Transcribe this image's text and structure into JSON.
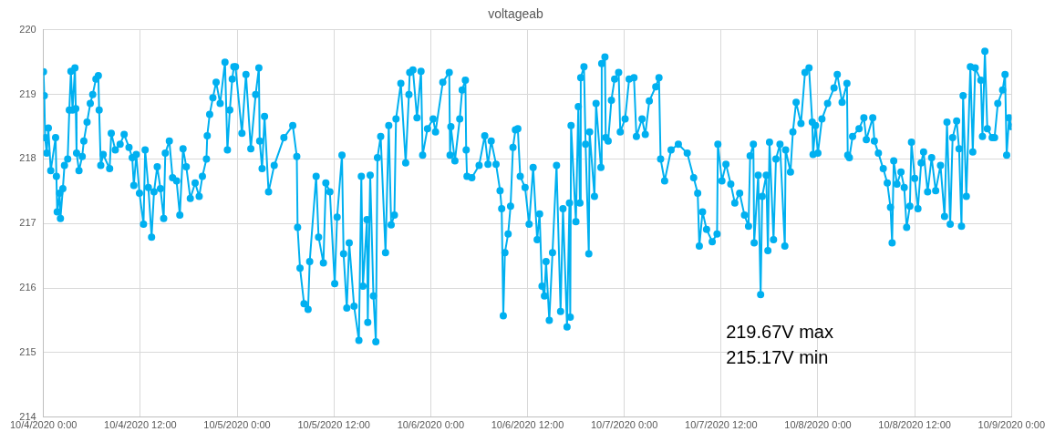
{
  "chart_data": {
    "type": "line",
    "title": "voltageab",
    "annotations": [
      "219.67V max",
      "215.17V min"
    ],
    "xlim": [
      "2020-10-04T00:00",
      "2020-10-09T00:00"
    ],
    "xticks": [
      {
        "value": "2020-10-04T00:00",
        "label": "10/4/2020 0:00"
      },
      {
        "value": "2020-10-04T12:00",
        "label": "10/4/2020 12:00"
      },
      {
        "value": "2020-10-05T00:00",
        "label": "10/5/2020 0:00"
      },
      {
        "value": "2020-10-05T12:00",
        "label": "10/5/2020 12:00"
      },
      {
        "value": "2020-10-06T00:00",
        "label": "10/6/2020 0:00"
      },
      {
        "value": "2020-10-06T12:00",
        "label": "10/6/2020 12:00"
      },
      {
        "value": "2020-10-07T00:00",
        "label": "10/7/2020 0:00"
      },
      {
        "value": "2020-10-07T12:00",
        "label": "10/7/2020 12:00"
      },
      {
        "value": "2020-10-08T00:00",
        "label": "10/8/2020 0:00"
      },
      {
        "value": "2020-10-08T12:00",
        "label": "10/8/2020 12:00"
      },
      {
        "value": "2020-10-09T00:00",
        "label": "10/9/2020 0:00"
      }
    ],
    "ylim": [
      214,
      220
    ],
    "yticks": [
      214,
      215,
      216,
      217,
      218,
      219,
      220
    ],
    "grid": true,
    "legend": false,
    "marker": "circle",
    "line_style": "solid",
    "x": [
      "2020-10-04T00:00",
      "2020-10-04T00:06",
      "2020-10-04T00:12",
      "2020-10-04T00:24",
      "2020-10-04T00:36",
      "2020-10-04T00:54",
      "2020-10-04T01:30",
      "2020-10-04T01:36",
      "2020-10-04T01:42",
      "2020-10-04T02:00",
      "2020-10-04T02:06",
      "2020-10-04T02:24",
      "2020-10-04T02:36",
      "2020-10-04T03:00",
      "2020-10-04T03:12",
      "2020-10-04T03:24",
      "2020-10-04T03:36",
      "2020-10-04T03:54",
      "2020-10-04T04:00",
      "2020-10-04T04:06",
      "2020-10-04T04:24",
      "2020-10-04T04:48",
      "2020-10-04T05:00",
      "2020-10-04T05:24",
      "2020-10-04T05:48",
      "2020-10-04T06:06",
      "2020-10-04T06:30",
      "2020-10-04T06:48",
      "2020-10-04T06:54",
      "2020-10-04T07:06",
      "2020-10-04T07:24",
      "2020-10-04T08:12",
      "2020-10-04T08:24",
      "2020-10-04T08:54",
      "2020-10-04T09:30",
      "2020-10-04T10:00",
      "2020-10-04T10:36",
      "2020-10-04T11:00",
      "2020-10-04T11:12",
      "2020-10-04T11:30",
      "2020-10-04T11:54",
      "2020-10-04T12:24",
      "2020-10-04T12:36",
      "2020-10-04T13:00",
      "2020-10-04T13:24",
      "2020-10-04T13:42",
      "2020-10-04T14:06",
      "2020-10-04T14:30",
      "2020-10-04T14:54",
      "2020-10-04T15:06",
      "2020-10-04T15:36",
      "2020-10-04T16:00",
      "2020-10-04T16:30",
      "2020-10-04T16:54",
      "2020-10-04T17:18",
      "2020-10-04T17:42",
      "2020-10-04T18:12",
      "2020-10-04T18:48",
      "2020-10-04T19:18",
      "2020-10-04T19:42",
      "2020-10-04T20:12",
      "2020-10-04T20:18",
      "2020-10-04T20:36",
      "2020-10-04T21:00",
      "2020-10-04T21:24",
      "2020-10-04T21:54",
      "2020-10-04T22:30",
      "2020-10-04T22:48",
      "2020-10-04T23:06",
      "2020-10-04T23:24",
      "2020-10-04T23:36",
      "2020-10-04T23:48",
      "2020-10-05T00:36",
      "2020-10-05T01:06",
      "2020-10-05T01:42",
      "2020-10-05T02:18",
      "2020-10-05T02:42",
      "2020-10-05T02:48",
      "2020-10-05T03:06",
      "2020-10-05T03:24",
      "2020-10-05T03:54",
      "2020-10-05T04:36",
      "2020-10-05T05:48",
      "2020-10-05T06:54",
      "2020-10-05T07:24",
      "2020-10-05T07:30",
      "2020-10-05T07:48",
      "2020-10-05T08:18",
      "2020-10-05T08:48",
      "2020-10-05T09:00",
      "2020-10-05T09:48",
      "2020-10-05T10:06",
      "2020-10-05T10:42",
      "2020-10-05T11:00",
      "2020-10-05T11:30",
      "2020-10-05T12:06",
      "2020-10-05T12:24",
      "2020-10-05T13:00",
      "2020-10-05T13:12",
      "2020-10-05T13:36",
      "2020-10-05T13:54",
      "2020-10-05T14:30",
      "2020-10-05T15:06",
      "2020-10-05T15:24",
      "2020-10-05T15:36",
      "2020-10-05T16:06",
      "2020-10-05T16:12",
      "2020-10-05T16:30",
      "2020-10-05T16:54",
      "2020-10-05T17:12",
      "2020-10-05T17:24",
      "2020-10-05T17:48",
      "2020-10-05T18:24",
      "2020-10-05T18:48",
      "2020-10-05T19:06",
      "2020-10-05T19:30",
      "2020-10-05T19:42",
      "2020-10-05T20:18",
      "2020-10-05T20:54",
      "2020-10-05T21:18",
      "2020-10-05T21:24",
      "2020-10-05T21:48",
      "2020-10-05T22:18",
      "2020-10-05T22:48",
      "2020-10-05T23:00",
      "2020-10-05T23:36",
      "2020-10-06T00:18",
      "2020-10-06T00:36",
      "2020-10-06T01:30",
      "2020-10-06T02:18",
      "2020-10-06T02:24",
      "2020-10-06T02:30",
      "2020-10-06T03:00",
      "2020-10-06T03:36",
      "2020-10-06T03:54",
      "2020-10-06T04:18",
      "2020-10-06T04:24",
      "2020-10-06T04:30",
      "2020-10-06T05:06",
      "2020-10-06T06:00",
      "2020-10-06T06:42",
      "2020-10-06T07:06",
      "2020-10-06T07:30",
      "2020-10-06T08:06",
      "2020-10-06T08:36",
      "2020-10-06T08:48",
      "2020-10-06T09:00",
      "2020-10-06T09:12",
      "2020-10-06T09:36",
      "2020-10-06T09:54",
      "2020-10-06T10:12",
      "2020-10-06T10:30",
      "2020-10-06T10:48",
      "2020-10-06T11:06",
      "2020-10-06T11:42",
      "2020-10-06T12:12",
      "2020-10-06T12:42",
      "2020-10-06T13:12",
      "2020-10-06T13:30",
      "2020-10-06T13:48",
      "2020-10-06T14:06",
      "2020-10-06T14:18",
      "2020-10-06T14:42",
      "2020-10-06T15:06",
      "2020-10-06T15:36",
      "2020-10-06T16:06",
      "2020-10-06T16:24",
      "2020-10-06T16:54",
      "2020-10-06T17:12",
      "2020-10-06T17:18",
      "2020-10-06T17:24",
      "2020-10-06T18:00",
      "2020-10-06T18:18",
      "2020-10-06T18:30",
      "2020-10-06T18:36",
      "2020-10-06T19:00",
      "2020-10-06T19:12",
      "2020-10-06T19:36",
      "2020-10-06T19:42",
      "2020-10-06T20:18",
      "2020-10-06T20:30",
      "2020-10-06T21:06",
      "2020-10-06T21:12",
      "2020-10-06T21:36",
      "2020-10-06T21:42",
      "2020-10-06T22:00",
      "2020-10-06T22:24",
      "2020-10-06T22:48",
      "2020-10-06T23:18",
      "2020-10-06T23:30",
      "2020-10-07T00:06",
      "2020-10-07T00:36",
      "2020-10-07T01:12",
      "2020-10-07T01:30",
      "2020-10-07T02:12",
      "2020-10-07T02:36",
      "2020-10-07T03:06",
      "2020-10-07T03:54",
      "2020-10-07T04:18",
      "2020-10-07T04:30",
      "2020-10-07T05:00",
      "2020-10-07T05:48",
      "2020-10-07T06:42",
      "2020-10-07T07:48",
      "2020-10-07T08:36",
      "2020-10-07T09:06",
      "2020-10-07T09:18",
      "2020-10-07T09:42",
      "2020-10-07T10:12",
      "2020-10-07T10:54",
      "2020-10-07T11:30",
      "2020-10-07T11:36",
      "2020-10-07T12:06",
      "2020-10-07T12:36",
      "2020-10-07T13:12",
      "2020-10-07T13:42",
      "2020-10-07T14:18",
      "2020-10-07T14:54",
      "2020-10-07T15:24",
      "2020-10-07T15:36",
      "2020-10-07T16:00",
      "2020-10-07T16:06",
      "2020-10-07T16:36",
      "2020-10-07T16:54",
      "2020-10-07T17:06",
      "2020-10-07T17:36",
      "2020-10-07T17:48",
      "2020-10-07T18:00",
      "2020-10-07T18:30",
      "2020-10-07T18:48",
      "2020-10-07T19:18",
      "2020-10-07T19:54",
      "2020-10-07T20:00",
      "2020-10-07T20:36",
      "2020-10-07T20:54",
      "2020-10-07T21:18",
      "2020-10-07T21:54",
      "2020-10-07T22:24",
      "2020-10-07T22:54",
      "2020-10-07T23:18",
      "2020-10-07T23:24",
      "2020-10-07T23:42",
      "2020-10-08T00:00",
      "2020-10-08T00:30",
      "2020-10-08T01:12",
      "2020-10-08T02:00",
      "2020-10-08T02:24",
      "2020-10-08T03:00",
      "2020-10-08T03:36",
      "2020-10-08T03:42",
      "2020-10-08T03:54",
      "2020-10-08T04:18",
      "2020-10-08T05:06",
      "2020-10-08T05:42",
      "2020-10-08T06:00",
      "2020-10-08T06:48",
      "2020-10-08T07:00",
      "2020-10-08T07:30",
      "2020-10-08T08:06",
      "2020-10-08T08:36",
      "2020-10-08T09:00",
      "2020-10-08T09:12",
      "2020-10-08T09:24",
      "2020-10-08T09:48",
      "2020-10-08T10:18",
      "2020-10-08T10:42",
      "2020-10-08T11:00",
      "2020-10-08T11:24",
      "2020-10-08T11:36",
      "2020-10-08T12:00",
      "2020-10-08T12:24",
      "2020-10-08T12:48",
      "2020-10-08T13:06",
      "2020-10-08T13:36",
      "2020-10-08T14:06",
      "2020-10-08T14:36",
      "2020-10-08T15:12",
      "2020-10-08T15:42",
      "2020-10-08T16:00",
      "2020-10-08T16:24",
      "2020-10-08T16:42",
      "2020-10-08T17:12",
      "2020-10-08T17:30",
      "2020-10-08T17:48",
      "2020-10-08T18:00",
      "2020-10-08T18:24",
      "2020-10-08T18:54",
      "2020-10-08T19:12",
      "2020-10-08T19:30",
      "2020-10-08T20:12",
      "2020-10-08T20:24",
      "2020-10-08T20:42",
      "2020-10-08T21:00",
      "2020-10-08T21:36",
      "2020-10-08T21:54",
      "2020-10-08T22:18",
      "2020-10-08T22:54",
      "2020-10-08T23:12",
      "2020-10-08T23:24",
      "2020-10-08T23:42",
      "2020-10-09T00:00"
    ],
    "series": [
      {
        "color": "#00b0f0",
        "values": [
          219.35,
          218.98,
          218.33,
          218.09,
          218.48,
          217.82,
          218.33,
          217.73,
          217.18,
          217.47,
          217.08,
          217.54,
          217.9,
          218.0,
          218.76,
          219.36,
          218.76,
          219.41,
          218.78,
          218.09,
          217.82,
          218.04,
          218.28,
          218.57,
          218.86,
          219.0,
          219.24,
          219.29,
          218.76,
          217.9,
          218.07,
          217.85,
          218.4,
          218.14,
          218.23,
          218.38,
          218.18,
          218.02,
          217.59,
          218.07,
          217.47,
          216.99,
          218.14,
          217.56,
          216.79,
          217.49,
          217.88,
          217.54,
          217.08,
          218.09,
          218.28,
          217.71,
          217.66,
          217.13,
          218.16,
          217.88,
          217.39,
          217.63,
          217.42,
          217.73,
          218.0,
          218.36,
          218.69,
          218.95,
          219.19,
          218.86,
          219.5,
          218.14,
          218.76,
          219.24,
          219.43,
          219.43,
          218.4,
          219.31,
          218.16,
          219.0,
          219.41,
          218.28,
          217.85,
          218.66,
          217.49,
          217.9,
          218.33,
          218.52,
          218.04,
          216.94,
          216.31,
          215.76,
          215.67,
          216.41,
          217.73,
          216.79,
          216.39,
          217.63,
          217.49,
          216.07,
          217.1,
          218.06,
          216.53,
          215.69,
          216.7,
          215.72,
          215.19,
          217.73,
          216.03,
          217.06,
          215.47,
          217.75,
          215.88,
          215.17,
          218.02,
          218.35,
          216.55,
          218.52,
          216.98,
          217.13,
          218.62,
          219.17,
          217.94,
          219.0,
          219.34,
          219.38,
          218.64,
          219.36,
          218.06,
          218.47,
          218.62,
          218.42,
          219.19,
          219.34,
          218.06,
          218.5,
          217.97,
          218.62,
          219.07,
          219.22,
          218.14,
          217.73,
          217.71,
          217.9,
          218.36,
          217.92,
          218.28,
          217.92,
          217.51,
          217.23,
          215.57,
          216.55,
          216.84,
          217.27,
          218.18,
          218.45,
          218.47,
          217.73,
          217.56,
          216.99,
          217.87,
          216.75,
          217.15,
          216.03,
          215.88,
          216.41,
          215.5,
          216.55,
          217.9,
          215.64,
          217.23,
          215.4,
          217.32,
          215.55,
          218.52,
          217.03,
          218.81,
          217.32,
          219.26,
          219.43,
          218.23,
          216.53,
          218.42,
          217.42,
          218.86,
          217.87,
          219.48,
          219.58,
          218.33,
          218.28,
          218.91,
          219.24,
          219.34,
          218.42,
          218.62,
          219.24,
          219.26,
          218.35,
          218.62,
          218.38,
          218.9,
          219.12,
          219.26,
          218.0,
          217.66,
          218.14,
          218.23,
          218.09,
          217.71,
          217.47,
          216.65,
          217.18,
          216.91,
          216.72,
          216.84,
          218.23,
          217.66,
          217.92,
          217.61,
          217.32,
          217.47,
          217.13,
          216.96,
          218.05,
          218.23,
          216.7,
          217.75,
          215.9,
          217.42,
          217.75,
          216.58,
          218.26,
          216.75,
          218.0,
          218.23,
          216.65,
          218.14,
          217.8,
          218.42,
          218.88,
          218.55,
          219.34,
          219.41,
          218.57,
          218.07,
          218.52,
          218.09,
          218.62,
          218.86,
          219.1,
          219.31,
          218.88,
          219.17,
          218.06,
          218.02,
          218.35,
          218.47,
          218.64,
          218.3,
          218.64,
          218.28,
          218.09,
          217.85,
          217.63,
          217.25,
          216.7,
          217.97,
          217.61,
          217.8,
          217.56,
          216.94,
          217.27,
          218.26,
          217.7,
          217.23,
          217.94,
          218.11,
          217.49,
          218.02,
          217.51,
          217.9,
          217.11,
          218.57,
          216.99,
          218.33,
          218.59,
          218.16,
          216.96,
          218.98,
          217.42,
          219.43,
          218.11,
          219.41,
          219.22,
          218.35,
          219.67,
          218.47,
          218.33,
          218.33,
          218.86,
          219.07,
          219.31,
          218.06,
          218.64,
          218.5
        ]
      }
    ]
  }
}
